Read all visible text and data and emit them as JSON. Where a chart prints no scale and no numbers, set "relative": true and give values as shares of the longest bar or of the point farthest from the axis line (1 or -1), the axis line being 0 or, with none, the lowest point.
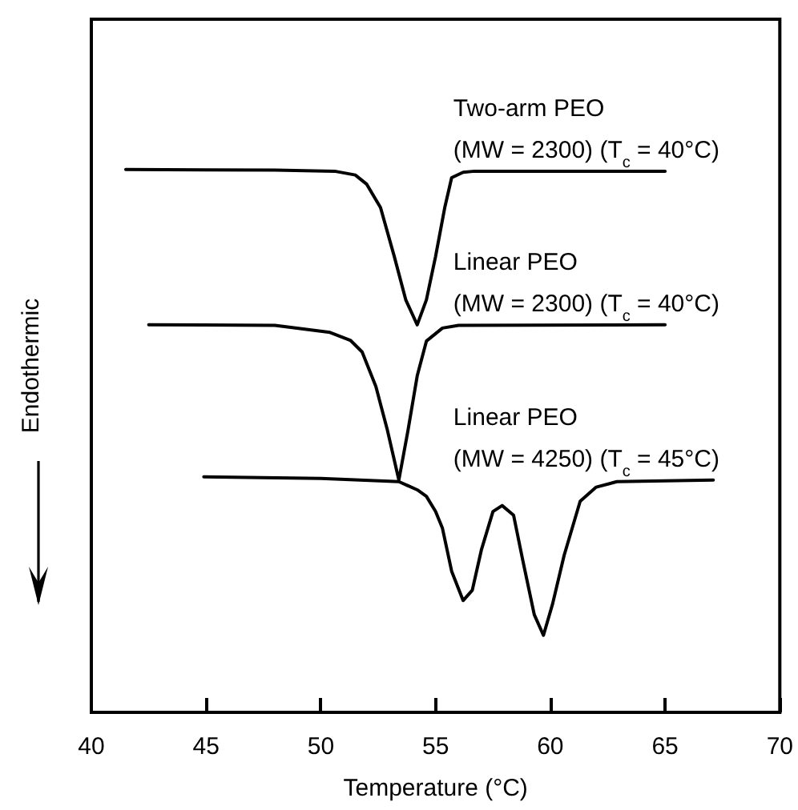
{
  "chart_data": {
    "type": "line",
    "xlabel": "Temperature (°C)",
    "ylabel": "Endothermic",
    "relative": true,
    "xlim": [
      40,
      70
    ],
    "xticks": [
      40,
      45,
      50,
      55,
      60,
      65,
      70
    ],
    "grid": false,
    "marker": "none",
    "line_style": "solid",
    "series": [
      {
        "name": "Two-arm PEO\n(MW = 2300) (T$_{c}$ = 40°C)",
        "color": "#000000",
        "x": [
          41.5,
          48,
          50.6,
          51.5,
          52.0,
          52.6,
          53.2,
          53.7,
          54.2,
          54.6,
          55.0,
          55.4,
          55.7,
          56.2,
          56.7,
          65.0
        ],
        "values": [
          1.0,
          0.999,
          0.997,
          0.99,
          0.973,
          0.93,
          0.84,
          0.76,
          0.714,
          0.76,
          0.84,
          0.93,
          0.985,
          0.995,
          0.997,
          0.997
        ]
      },
      {
        "name": "Linear PEO\n(MW = 2300) (T$_{c}$ = 40°C)",
        "color": "#000000",
        "x": [
          42.5,
          48,
          50.4,
          51.3,
          51.8,
          52.4,
          52.9,
          53.4,
          53.8,
          54.2,
          54.6,
          55.3,
          56,
          65
        ],
        "values": [
          0.714,
          0.713,
          0.7,
          0.685,
          0.664,
          0.6,
          0.52,
          0.428,
          0.52,
          0.62,
          0.684,
          0.708,
          0.713,
          0.714
        ]
      },
      {
        "name": "Linear PEO\n(MW = 4250) (T$_{c}$ = 45°C)",
        "color": "#000000",
        "x": [
          44.9,
          50,
          53.4,
          54.2,
          54.6,
          55.0,
          55.3,
          55.7,
          56.2,
          56.6,
          57.0,
          57.5,
          57.9,
          58.4,
          58.8,
          59.3,
          59.7,
          60.1,
          60.6,
          61.3,
          62.0,
          62.9,
          67.1
        ],
        "values": [
          0.434,
          0.431,
          0.425,
          0.41,
          0.398,
          0.37,
          0.339,
          0.26,
          0.206,
          0.225,
          0.3,
          0.37,
          0.381,
          0.363,
          0.28,
          0.18,
          0.142,
          0.2,
          0.289,
          0.389,
          0.415,
          0.425,
          0.428
        ]
      }
    ]
  }
}
